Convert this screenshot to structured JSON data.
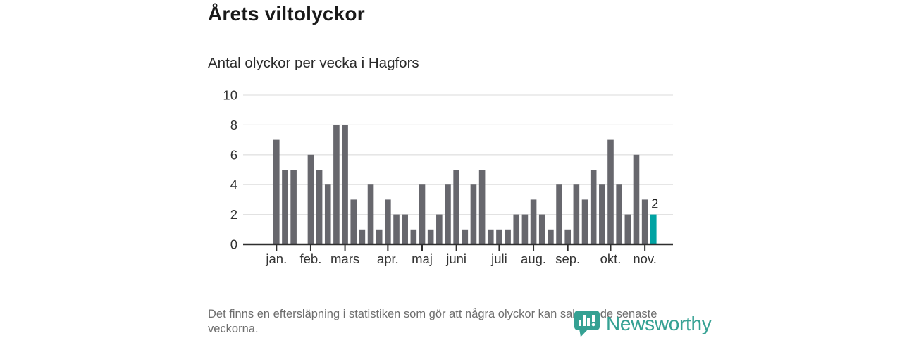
{
  "header": {
    "title": "Årets viltolyckor",
    "subtitle": "Antal olyckor per vecka i Hagfors"
  },
  "footer": {
    "note": "Det finns en eftersläpning i statistiken som gör att några olyckor kan saknas de senaste veckorna.",
    "brand": "Newsworthy"
  },
  "colors": {
    "bar": "#67676d",
    "highlight": "#00a3a3",
    "grid": "#e2e2e2",
    "axis": "#2e2e2e",
    "tick_text": "#333333",
    "muted_text": "#6e6e6e",
    "brand_teal": "#35a193",
    "label_text": "#1f1f1f"
  },
  "chart_data": {
    "type": "bar",
    "title": "Årets viltolyckor",
    "subtitle": "Antal olyckor per vecka i Hagfors",
    "xlabel": "",
    "ylabel": "Antal olyckor per vecka",
    "ylim": [
      0,
      10
    ],
    "y_ticks": [
      0,
      2,
      4,
      6,
      8,
      10
    ],
    "grid": true,
    "values": [
      7,
      5,
      5,
      0,
      6,
      5,
      4,
      8,
      8,
      3,
      1,
      4,
      1,
      3,
      2,
      2,
      1,
      4,
      1,
      2,
      4,
      5,
      1,
      4,
      5,
      1,
      1,
      1,
      2,
      2,
      3,
      2,
      1,
      4,
      1,
      4,
      3,
      5,
      4,
      7,
      4,
      2,
      6,
      3,
      2
    ],
    "highlight_index": 44,
    "highlight_value_label": "2",
    "month_ticks": [
      {
        "label": "jan.",
        "week": 0
      },
      {
        "label": "feb.",
        "week": 4
      },
      {
        "label": "mars",
        "week": 8
      },
      {
        "label": "apr.",
        "week": 13
      },
      {
        "label": "maj",
        "week": 17
      },
      {
        "label": "juni",
        "week": 21
      },
      {
        "label": "juli",
        "week": 26
      },
      {
        "label": "aug.",
        "week": 30
      },
      {
        "label": "sep.",
        "week": 34
      },
      {
        "label": "okt.",
        "week": 39
      },
      {
        "label": "nov.",
        "week": 43
      }
    ]
  }
}
